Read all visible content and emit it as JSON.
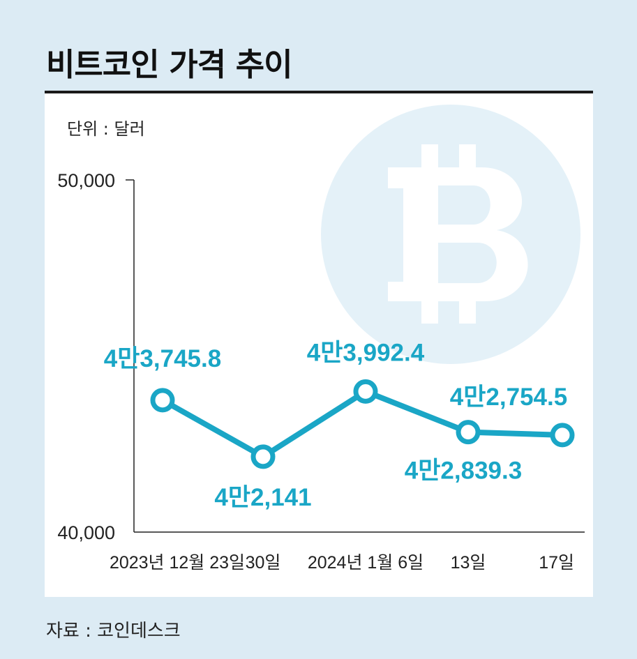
{
  "title": "비트코인 가격 추이",
  "unit_label": "단위 : 달러",
  "source": "자료 : 코인데스크",
  "colors": {
    "line": "#1aa6c6",
    "background": "#dcebf4",
    "panel": "#ffffff",
    "watermark": "#e4f1f8"
  },
  "watermark": "bitcoin-logo-icon",
  "chart_data": {
    "type": "line",
    "title": "비트코인 가격 추이",
    "ylabel": "단위 : 달러",
    "ylim": [
      40000,
      50000
    ],
    "yticks": [
      "50,000",
      "40,000"
    ],
    "categories": [
      "2023년 12월 23일",
      "30일",
      "2024년 1월 6일",
      "13일",
      "17일"
    ],
    "values": [
      43745.8,
      42141,
      43992.4,
      42839.3,
      42754.5
    ],
    "value_labels": [
      "4만3,745.8",
      "4만2,141",
      "4만3,992.4",
      "4만2,839.3",
      "4만2,754.5"
    ],
    "grid": false,
    "legend": "none"
  }
}
